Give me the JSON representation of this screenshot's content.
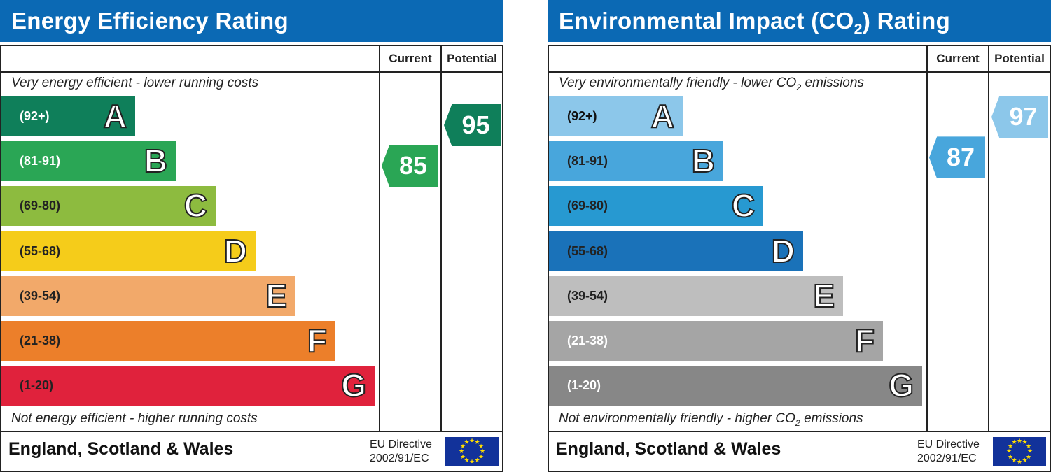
{
  "chart_data": [
    {
      "type": "bar",
      "title": "Energy Efficiency Rating",
      "columns": [
        "Current",
        "Potential"
      ],
      "top_note": "Very energy efficient - lower running costs",
      "bottom_note": "Not energy efficient - higher running costs",
      "bands": [
        {
          "letter": "A",
          "range": "(92+)",
          "color": "#0f7f5a",
          "text_color": "#ffffff"
        },
        {
          "letter": "B",
          "range": "(81-91)",
          "color": "#2aa655",
          "text_color": "#ffffff"
        },
        {
          "letter": "C",
          "range": "(69-80)",
          "color": "#8dbb3f",
          "text_color": "#222222"
        },
        {
          "letter": "D",
          "range": "(55-68)",
          "color": "#f5cc1a",
          "text_color": "#222222"
        },
        {
          "letter": "E",
          "range": "(39-54)",
          "color": "#f2a96a",
          "text_color": "#222222"
        },
        {
          "letter": "F",
          "range": "(21-38)",
          "color": "#ec7f2a",
          "text_color": "#222222"
        },
        {
          "letter": "G",
          "range": "(1-20)",
          "color": "#e0223c",
          "text_color": "#222222"
        }
      ],
      "current": {
        "value": 85,
        "color": "#2aa655"
      },
      "potential": {
        "value": 95,
        "color": "#0f7f5a"
      },
      "region": "England, Scotland & Wales",
      "directive": [
        "EU Directive",
        "2002/91/EC"
      ]
    },
    {
      "type": "bar",
      "title": "Environmental Impact (CO₂) Rating",
      "columns": [
        "Current",
        "Potential"
      ],
      "top_note": "Very environmentally friendly - lower CO₂ emissions",
      "bottom_note": "Not environmentally friendly - higher CO₂ emissions",
      "bands": [
        {
          "letter": "A",
          "range": "(92+)",
          "color": "#8cc7ea",
          "text_color": "#111111"
        },
        {
          "letter": "B",
          "range": "(81-91)",
          "color": "#48a6dc",
          "text_color": "#222222"
        },
        {
          "letter": "C",
          "range": "(69-80)",
          "color": "#2799d1",
          "text_color": "#222222"
        },
        {
          "letter": "D",
          "range": "(55-68)",
          "color": "#1a72b9",
          "text_color": "#222222"
        },
        {
          "letter": "E",
          "range": "(39-54)",
          "color": "#bebebe",
          "text_color": "#222222"
        },
        {
          "letter": "F",
          "range": "(21-38)",
          "color": "#a5a5a5",
          "text_color": "#ffffff"
        },
        {
          "letter": "G",
          "range": "(1-20)",
          "color": "#878787",
          "text_color": "#ffffff"
        }
      ],
      "current": {
        "value": 87,
        "color": "#48a6dc"
      },
      "potential": {
        "value": 97,
        "color": "#8cc7ea"
      },
      "region": "England, Scotland & Wales",
      "directive": [
        "EU Directive",
        "2002/91/EC"
      ]
    }
  ]
}
